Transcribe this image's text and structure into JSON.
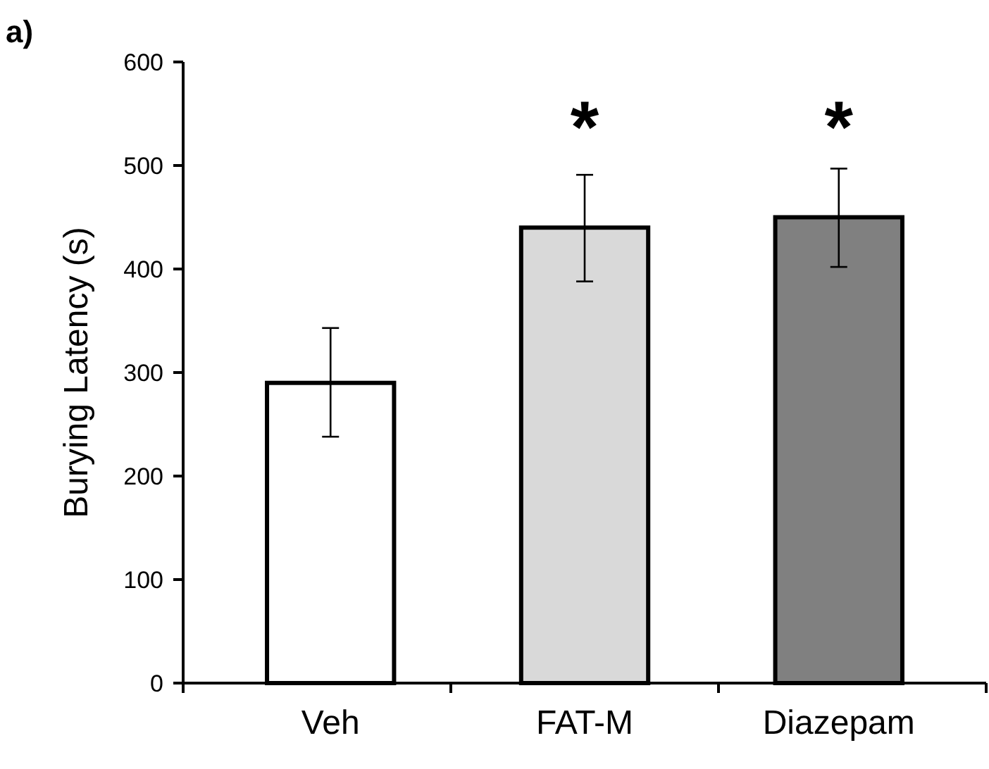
{
  "chart_data": {
    "type": "bar",
    "ylabel": "Burying Latency (s)",
    "categories": [
      "Veh",
      "FAT-M",
      "Diazepam"
    ],
    "values": [
      290,
      440,
      450
    ],
    "colors": [
      "#ffffff",
      "#d9d9d9",
      "#808080"
    ],
    "errors": [
      [
        238,
        343
      ],
      [
        388,
        491
      ],
      [
        402,
        497
      ]
    ],
    "ylim": [
      0,
      600
    ],
    "yticks": [
      0,
      100,
      200,
      300,
      400,
      500,
      600
    ],
    "grid": false,
    "annotations": [
      "a)",
      "*",
      "*"
    ]
  }
}
